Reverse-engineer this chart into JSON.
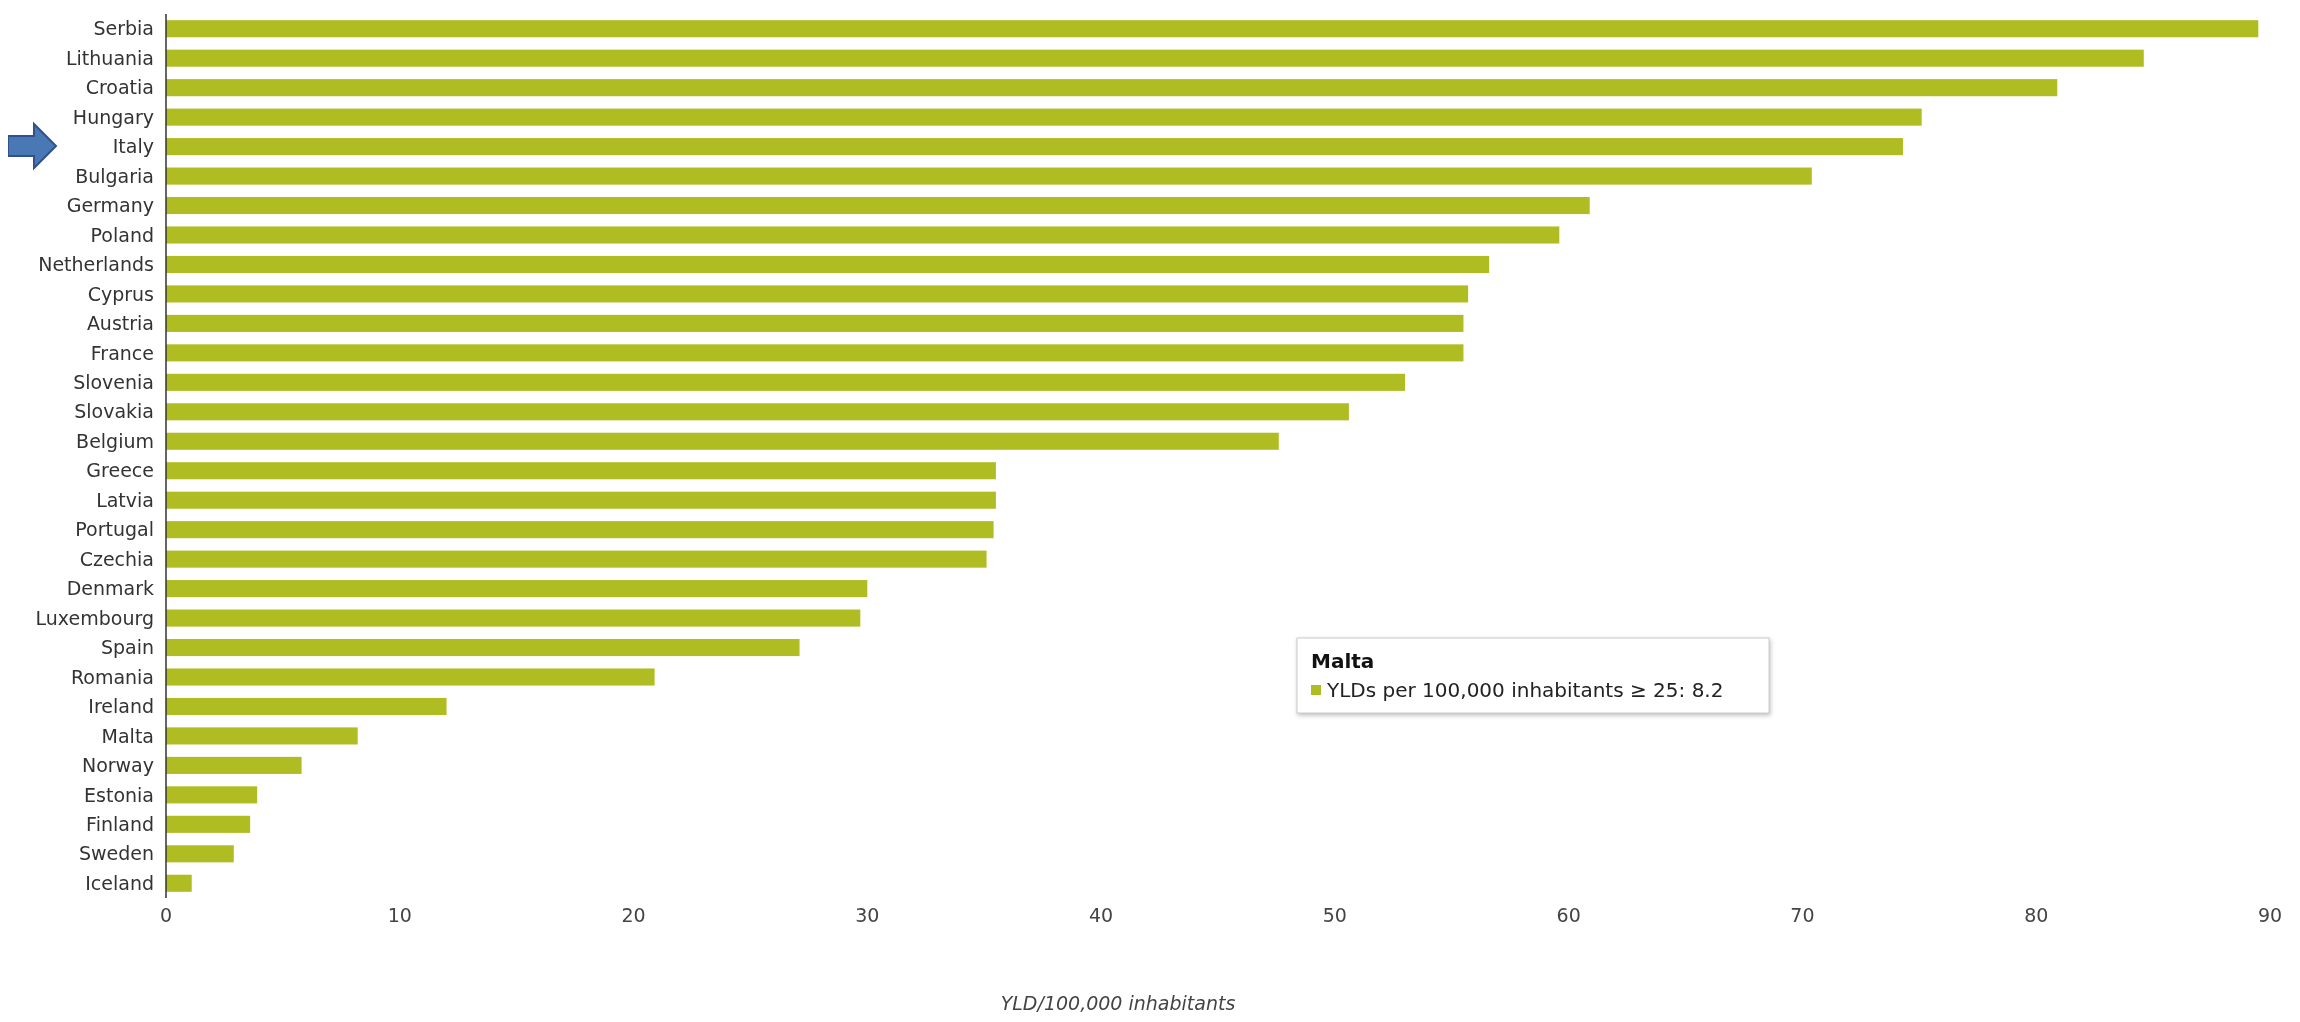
{
  "chart_data": {
    "type": "bar",
    "orientation": "horizontal",
    "xlabel": "YLD/100,000 inhabitants",
    "categories": [
      "Serbia",
      "Lithuania",
      "Croatia",
      "Hungary",
      "Italy",
      "Bulgaria",
      "Germany",
      "Poland",
      "Netherlands",
      "Cyprus",
      "Austria",
      "France",
      "Slovenia",
      "Slovakia",
      "Belgium",
      "Greece",
      "Latvia",
      "Portugal",
      "Czechia",
      "Denmark",
      "Luxembourg",
      "Spain",
      "Romania",
      "Ireland",
      "Malta",
      "Norway",
      "Estonia",
      "Finland",
      "Sweden",
      "Iceland"
    ],
    "values": [
      89.5,
      84.6,
      80.9,
      75.1,
      74.3,
      70.4,
      60.9,
      59.6,
      56.6,
      55.7,
      55.5,
      55.5,
      53.0,
      50.6,
      47.6,
      35.5,
      35.5,
      35.4,
      35.1,
      30.0,
      29.7,
      27.1,
      20.9,
      12.0,
      8.2,
      5.8,
      3.9,
      3.6,
      2.9,
      1.1
    ],
    "color": "#afbd22",
    "xlim": [
      0,
      90
    ],
    "xticks": [
      0,
      10,
      20,
      30,
      40,
      50,
      60,
      70,
      80,
      90
    ],
    "grid": false,
    "annotations": [
      "Malta",
      "YLDs per 100,000 inhabitants ≥ 25: 8.2"
    ]
  }
}
